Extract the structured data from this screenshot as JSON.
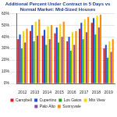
{
  "chart_data": {
    "type": "bar",
    "title": "Additional Percent Under Contract in 5 Days vs Normal Market: Mid-Sized Houses",
    "categories": [
      "2012",
      "2013",
      "2014",
      "2015",
      "2016",
      "2017",
      "2018",
      "2019"
    ],
    "series": [
      {
        "name": "Campbell",
        "color": "#e31a1c",
        "values": [
          38,
          45,
          41,
          43,
          36,
          47,
          52,
          30
        ]
      },
      {
        "name": "Cupertino",
        "color": "#1f4fd8",
        "values": [
          42,
          50,
          46,
          48,
          40,
          52,
          56,
          33
        ]
      },
      {
        "name": "Los Gatos",
        "color": "#2ca02c",
        "values": [
          30,
          36,
          33,
          35,
          28,
          38,
          42,
          22
        ]
      },
      {
        "name": "Mtn View",
        "color": "#f5d800",
        "values": [
          45,
          53,
          49,
          51,
          44,
          55,
          58,
          36
        ]
      },
      {
        "name": "Palo Alto",
        "color": "#8e44ad",
        "values": [
          35,
          41,
          38,
          40,
          33,
          44,
          48,
          27
        ]
      },
      {
        "name": "Sunnyvale",
        "color": "#ff8c00",
        "values": [
          47,
          55,
          50,
          53,
          45,
          57,
          59,
          38
        ]
      }
    ],
    "ylim": [
      0,
      60
    ],
    "yticks": [
      {
        "value": 0,
        "label": "0%"
      },
      {
        "value": 10,
        "label": "10%"
      },
      {
        "value": 20,
        "label": "20%"
      },
      {
        "value": 30,
        "label": "30%"
      },
      {
        "value": 40,
        "label": "40%"
      },
      {
        "value": 50,
        "label": "50%"
      },
      {
        "value": 60,
        "label": "60%"
      }
    ],
    "grid": true,
    "legend": "bottom"
  }
}
